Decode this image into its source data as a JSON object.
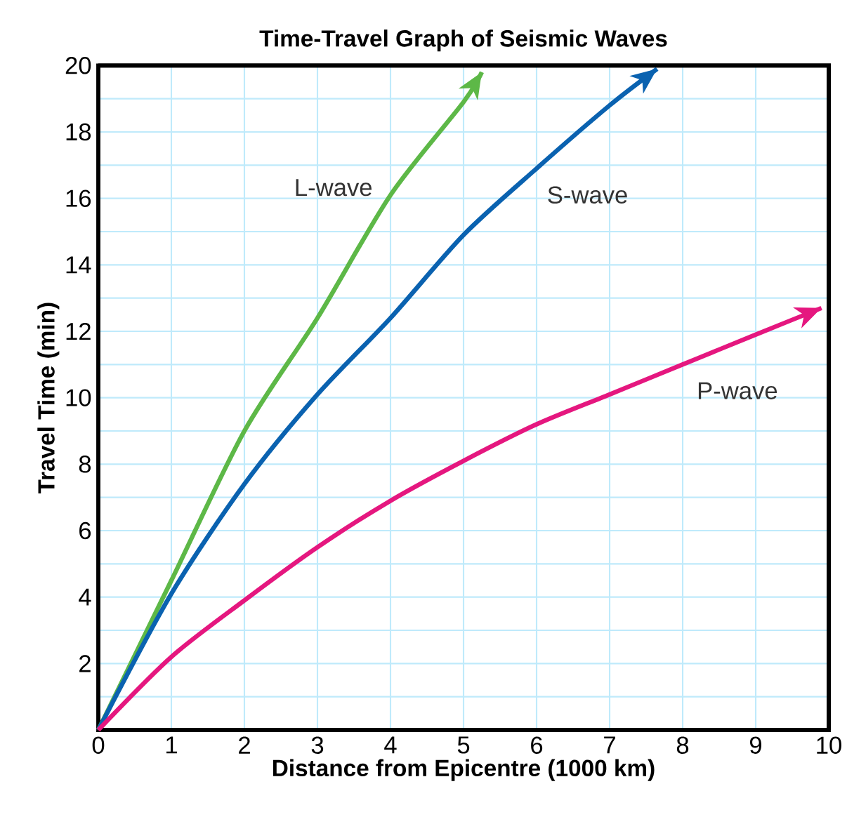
{
  "chart_data": {
    "type": "line",
    "title": "Time-Travel Graph of Seismic Waves",
    "xlabel": "Distance from Epicentre (1000 km)",
    "ylabel": "Travel Time (min)",
    "xlim": [
      0,
      10
    ],
    "ylim": [
      0,
      20
    ],
    "xticks": [
      0,
      1,
      2,
      3,
      4,
      5,
      6,
      7,
      8,
      9,
      10
    ],
    "yticks": [
      {
        "value": 1,
        "label": null
      },
      2,
      {
        "value": 3,
        "label": null
      },
      4,
      {
        "value": 5,
        "label": null
      },
      6,
      {
        "value": 7,
        "label": null
      },
      8,
      {
        "value": 9,
        "label": null
      },
      10,
      {
        "value": 11,
        "label": null
      },
      12,
      {
        "value": 13,
        "label": null
      },
      14,
      {
        "value": 15,
        "label": null
      },
      16,
      {
        "value": 17,
        "label": null
      },
      18,
      {
        "value": 19,
        "label": null
      },
      20
    ],
    "grid": true,
    "marker": "none",
    "line_style": "solid",
    "series": [
      {
        "name": "L-wave",
        "color": "#5db847",
        "x": [
          0,
          1,
          2,
          3,
          4,
          5,
          5.25
        ],
        "values": [
          0,
          4.5,
          9.0,
          12.4,
          16.1,
          18.9,
          19.8
        ]
      },
      {
        "name": "S-wave",
        "color": "#0a62b0",
        "x": [
          0,
          1,
          2,
          3,
          4,
          5,
          6,
          7,
          7.65
        ],
        "values": [
          0,
          4.1,
          7.4,
          10.1,
          12.4,
          14.9,
          16.9,
          18.8,
          19.9
        ]
      },
      {
        "name": "P-wave",
        "color": "#e5177f",
        "x": [
          0,
          1,
          2,
          3,
          4,
          5,
          6,
          7,
          8,
          9,
          9.9
        ],
        "values": [
          0,
          2.2,
          3.9,
          5.5,
          6.9,
          8.1,
          9.2,
          10.1,
          11.0,
          11.9,
          12.7
        ]
      }
    ]
  }
}
